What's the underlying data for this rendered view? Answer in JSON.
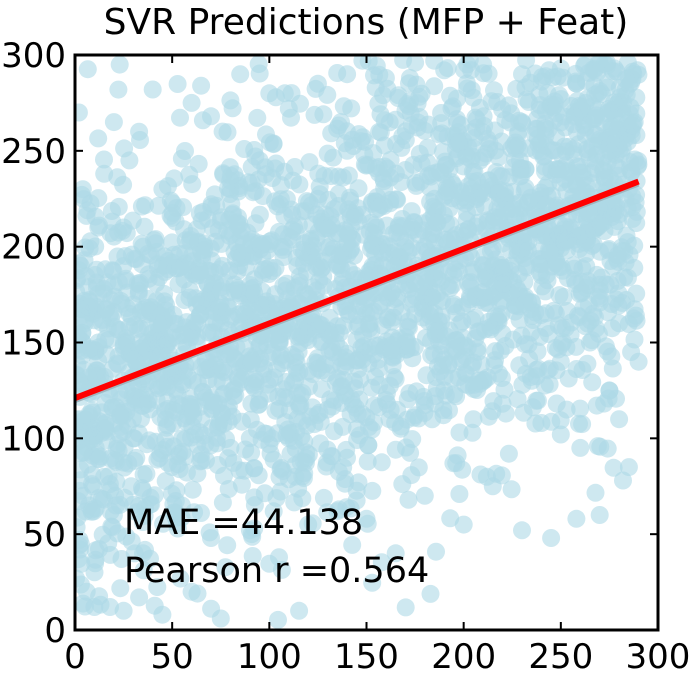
{
  "chart_data": {
    "type": "scatter",
    "title": "SVR Predictions (MFP + Feat)",
    "xlabel": "",
    "ylabel": "",
    "xlim": [
      0,
      300
    ],
    "ylim": [
      0,
      300
    ],
    "xticks": [
      0,
      50,
      100,
      150,
      200,
      250,
      300
    ],
    "yticks": [
      0,
      50,
      100,
      150,
      200,
      250,
      300
    ],
    "x_data_range": [
      0,
      290
    ],
    "scatter_color": "#add8e6",
    "regression_line": {
      "color": "#ff0000",
      "x": [
        0,
        290
      ],
      "y": [
        121,
        234
      ]
    },
    "sample_points": [
      [
        23,
        295
      ],
      [
        25,
        210
      ],
      [
        40,
        282
      ],
      [
        28,
        245
      ],
      [
        33,
        260
      ],
      [
        15,
        238
      ],
      [
        45,
        230
      ],
      [
        60,
        275
      ],
      [
        70,
        268
      ],
      [
        85,
        290
      ],
      [
        100,
        280
      ],
      [
        110,
        272
      ],
      [
        125,
        285
      ],
      [
        140,
        290
      ],
      [
        160,
        288
      ],
      [
        175,
        296
      ],
      [
        190,
        292
      ],
      [
        210,
        295
      ],
      [
        230,
        290
      ],
      [
        250,
        293
      ],
      [
        270,
        296
      ],
      [
        285,
        288
      ],
      [
        2,
        270
      ],
      [
        4,
        230
      ],
      [
        3,
        190
      ],
      [
        5,
        160
      ],
      [
        2,
        130
      ],
      [
        6,
        95
      ],
      [
        4,
        70
      ],
      [
        3,
        45
      ],
      [
        6,
        20
      ],
      [
        10,
        12
      ],
      [
        18,
        12
      ],
      [
        25,
        10
      ],
      [
        33,
        17
      ],
      [
        45,
        8
      ],
      [
        60,
        20
      ],
      [
        75,
        6
      ],
      [
        20,
        60
      ],
      [
        35,
        40
      ],
      [
        55,
        65
      ],
      [
        70,
        48
      ],
      [
        90,
        52
      ],
      [
        105,
        38
      ],
      [
        120,
        55
      ],
      [
        135,
        62
      ],
      [
        150,
        58
      ],
      [
        165,
        40
      ],
      [
        180,
        70
      ],
      [
        200,
        55
      ],
      [
        215,
        75
      ],
      [
        230,
        52
      ],
      [
        245,
        48
      ],
      [
        258,
        58
      ],
      [
        270,
        60
      ],
      [
        282,
        78
      ],
      [
        285,
        85
      ],
      [
        280,
        110
      ],
      [
        260,
        95
      ],
      [
        250,
        102
      ],
      [
        240,
        108
      ],
      [
        275,
        125
      ],
      [
        290,
        140
      ],
      [
        10,
        100
      ],
      [
        15,
        80
      ],
      [
        30,
        100
      ],
      [
        42,
        120
      ],
      [
        50,
        85
      ],
      [
        65,
        110
      ],
      [
        80,
        95
      ],
      [
        95,
        120
      ],
      [
        110,
        100
      ],
      [
        130,
        115
      ],
      [
        145,
        105
      ],
      [
        160,
        120
      ],
      [
        175,
        112
      ],
      [
        190,
        125
      ],
      [
        205,
        110
      ],
      [
        220,
        118
      ],
      [
        235,
        130
      ],
      [
        250,
        140
      ],
      [
        265,
        150
      ],
      [
        280,
        160
      ],
      [
        20,
        180
      ],
      [
        35,
        200
      ],
      [
        50,
        215
      ],
      [
        65,
        170
      ],
      [
        80,
        230
      ],
      [
        95,
        245
      ],
      [
        110,
        205
      ],
      [
        125,
        225
      ],
      [
        140,
        250
      ],
      [
        155,
        210
      ],
      [
        170,
        240
      ],
      [
        185,
        215
      ],
      [
        200,
        255
      ],
      [
        215,
        230
      ],
      [
        230,
        265
      ],
      [
        245,
        240
      ],
      [
        260,
        270
      ],
      [
        275,
        250
      ],
      [
        288,
        265
      ],
      [
        60,
        140
      ],
      [
        75,
        160
      ],
      [
        90,
        180
      ],
      [
        105,
        150
      ],
      [
        120,
        175
      ],
      [
        135,
        190
      ],
      [
        150,
        165
      ],
      [
        165,
        185
      ],
      [
        180,
        200
      ],
      [
        195,
        170
      ],
      [
        210,
        190
      ],
      [
        225,
        205
      ],
      [
        240,
        185
      ],
      [
        255,
        210
      ],
      [
        270,
        220
      ],
      [
        285,
        230
      ],
      [
        40,
        150
      ],
      [
        28,
        165
      ],
      [
        12,
        150
      ],
      [
        12,
        210
      ],
      [
        20,
        265
      ]
    ],
    "annotations": [
      "MAE =44.138",
      "Pearson r =0.564"
    ]
  }
}
